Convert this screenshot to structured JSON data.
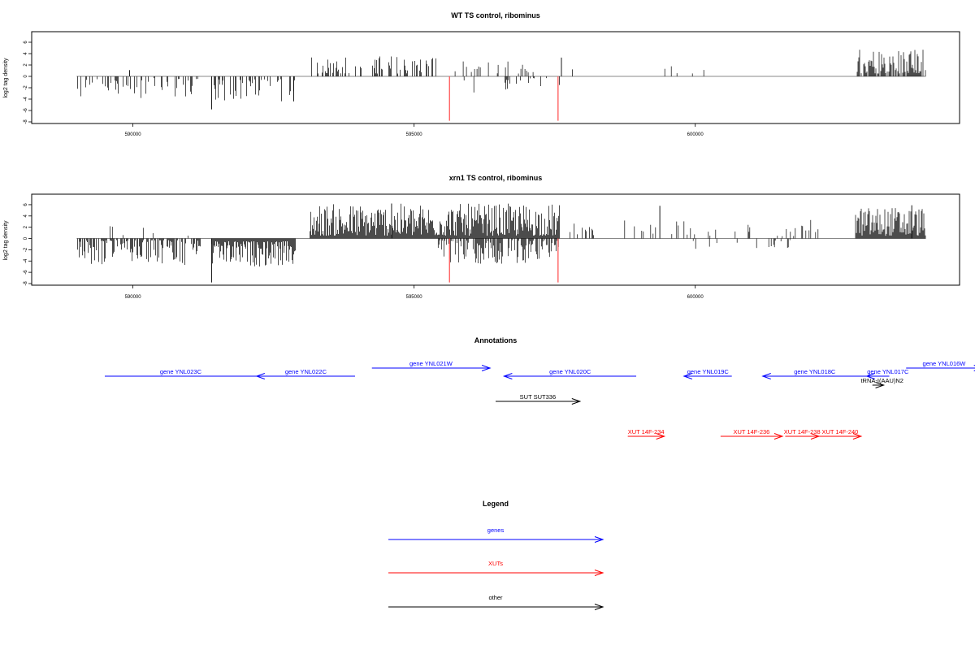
{
  "chart_data": [
    {
      "type": "bar",
      "title": "WT TS control, ribominus",
      "ylabel": "log2 tag density",
      "xlim": [
        588200,
        604700
      ],
      "ylim": [
        -8,
        7
      ],
      "x_ticks": [
        590000,
        595000,
        600000
      ],
      "y_ticks": [
        -8,
        -6,
        -4,
        -2,
        0,
        2,
        4,
        6
      ],
      "baseline_color": "#888888",
      "signal_color": "#000000",
      "highlight_color": "#ff5555",
      "highlights": [
        {
          "x": 595630,
          "y": -7.8
        },
        {
          "x": 597560,
          "y": -7.8
        }
      ],
      "segments": [
        {
          "start": 589000,
          "end": 591200,
          "sign": -1,
          "density": 0.14,
          "min": 0.3,
          "max": 4.2
        },
        {
          "start": 591400,
          "end": 592900,
          "sign": -1,
          "density": 0.2,
          "min": 0.5,
          "max": 4.5
        },
        {
          "start": 593150,
          "end": 595400,
          "sign": 1,
          "density": 0.16,
          "min": 0.5,
          "max": 3.7
        },
        {
          "start": 595500,
          "end": 596200,
          "sign": -1,
          "density": 0.05,
          "min": 0.3,
          "max": 3.0
        },
        {
          "start": 595700,
          "end": 597200,
          "sign": 1,
          "density": 0.1,
          "min": 0.5,
          "max": 2.7
        },
        {
          "start": 596500,
          "end": 597600,
          "sign": -1,
          "density": 0.05,
          "min": 0.3,
          "max": 2.6
        },
        {
          "start": 597600,
          "end": 598000,
          "sign": 1,
          "density": 0.05,
          "min": 0.4,
          "max": 3.3
        },
        {
          "start": 599400,
          "end": 600200,
          "sign": 1,
          "density": 0.03,
          "min": 0.5,
          "max": 2.4
        },
        {
          "start": 602300,
          "end": 602500,
          "sign": 1,
          "density": 0.02,
          "min": 0.8,
          "max": 2.0
        },
        {
          "start": 602850,
          "end": 604100,
          "sign": 1,
          "density": 0.35,
          "min": 0.5,
          "max": 4.9
        }
      ],
      "spikes": [
        {
          "x": 591400,
          "y": -5.8
        },
        {
          "x": 589940,
          "y": 1.1
        },
        {
          "x": 592860,
          "y": -4.4
        },
        {
          "x": 597620,
          "y": 3.3
        }
      ]
    },
    {
      "type": "bar",
      "title": "xrn1 TS control, ribominus",
      "ylabel": "log2 tag density",
      "xlim": [
        588200,
        604700
      ],
      "ylim": [
        -8,
        7
      ],
      "x_ticks": [
        590000,
        595000,
        600000
      ],
      "y_ticks": [
        -8,
        -6,
        -4,
        -2,
        0,
        2,
        4,
        6
      ],
      "baseline_color": "#888888",
      "signal_color": "#000000",
      "highlight_color": "#ff5555",
      "highlights": [
        {
          "x": 595630,
          "y": -7.8
        },
        {
          "x": 597560,
          "y": -7.8
        }
      ],
      "segments": [
        {
          "start": 589000,
          "end": 591200,
          "sign": -1,
          "density": 0.3,
          "min": 0.3,
          "max": 4.8
        },
        {
          "start": 589100,
          "end": 591100,
          "sign": 1,
          "density": 0.02,
          "min": 0.5,
          "max": 3.3
        },
        {
          "start": 591400,
          "end": 592900,
          "sign": -1,
          "density": 0.45,
          "min": 0.5,
          "max": 5.0
        },
        {
          "start": 593150,
          "end": 597600,
          "sign": 1,
          "density": 0.5,
          "min": 0.5,
          "max": 6.2
        },
        {
          "start": 595400,
          "end": 597600,
          "sign": -1,
          "density": 0.3,
          "min": 0.3,
          "max": 4.5
        },
        {
          "start": 597700,
          "end": 598300,
          "sign": 1,
          "density": 0.12,
          "min": 0.5,
          "max": 3.0
        },
        {
          "start": 598600,
          "end": 602300,
          "sign": 1,
          "density": 0.06,
          "min": 0.4,
          "max": 3.4
        },
        {
          "start": 599400,
          "end": 602300,
          "sign": -1,
          "density": 0.03,
          "min": 0.3,
          "max": 1.9
        },
        {
          "start": 602850,
          "end": 604100,
          "sign": 1,
          "density": 0.5,
          "min": 0.5,
          "max": 5.7
        }
      ],
      "spikes": [
        {
          "x": 591400,
          "y": -7.8
        },
        {
          "x": 594600,
          "y": 6.2
        },
        {
          "x": 599370,
          "y": 5.8
        },
        {
          "x": 603850,
          "y": 5.9
        }
      ]
    }
  ],
  "annotations": {
    "title": "Annotations",
    "colors": {
      "genes": "#0000ff",
      "XUTs": "#ff0000",
      "other": "#000000"
    },
    "items": [
      {
        "label": "gene YNL023C",
        "kind": "genes",
        "dir": "left",
        "x0": 589500,
        "x1": 592200,
        "row": 1,
        "bare": true
      },
      {
        "label": "gene YNL022C",
        "kind": "genes",
        "dir": "left",
        "x0": 592200,
        "x1": 593950,
        "row": 1
      },
      {
        "label": "gene YNL021W",
        "kind": "genes",
        "dir": "right",
        "x0": 594250,
        "x1": 596350,
        "row": 0
      },
      {
        "label": "gene YNL020C",
        "kind": "genes",
        "dir": "left",
        "x0": 596600,
        "x1": 598950,
        "row": 1
      },
      {
        "label": "gene YNL019C",
        "kind": "genes",
        "dir": "left",
        "x0": 599800,
        "x1": 600650,
        "row": 1
      },
      {
        "label": "gene YNL018C",
        "kind": "genes",
        "dir": "left",
        "x0": 601200,
        "x1": 603050,
        "row": 1
      },
      {
        "label": "gene YNL017C",
        "kind": "genes",
        "dir": "left",
        "x0": 603050,
        "x1": 603450,
        "row": 1,
        "labelAbove": true
      },
      {
        "label": "gene YNL016W",
        "kind": "genes",
        "dir": "right",
        "x0": 603750,
        "x1": 605100,
        "row": 0
      },
      {
        "label": "tRNA-I(AAU)N2",
        "kind": "other",
        "dir": "right",
        "x0": 603150,
        "x1": 603350,
        "row": 2
      },
      {
        "label": "SUT SUT336",
        "kind": "other",
        "dir": "right",
        "x0": 596450,
        "x1": 597950,
        "row": 3
      },
      {
        "label": "XUT 14F-234",
        "kind": "XUTs",
        "dir": "right",
        "x0": 598800,
        "x1": 599450,
        "row": 4
      },
      {
        "label": "XUT 14F-236",
        "kind": "XUTs",
        "dir": "right",
        "x0": 600450,
        "x1": 601550,
        "row": 4
      },
      {
        "label": "XUT 14F-238",
        "kind": "XUTs",
        "dir": "right",
        "x0": 601600,
        "x1": 602200,
        "row": 4
      },
      {
        "label": "XUT 14F-240",
        "kind": "XUTs",
        "dir": "right",
        "x0": 602200,
        "x1": 602950,
        "row": 4
      }
    ]
  },
  "legend": {
    "title": "Legend",
    "items": [
      {
        "label": "genes",
        "color": "#0000ff"
      },
      {
        "label": "XUTs",
        "color": "#ff0000"
      },
      {
        "label": "other",
        "color": "#000000"
      }
    ]
  }
}
